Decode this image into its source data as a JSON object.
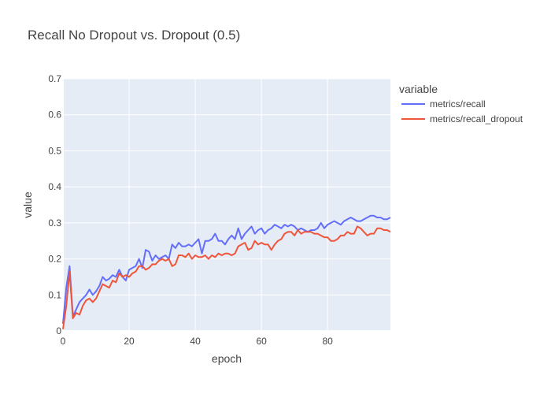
{
  "chart_data": {
    "type": "line",
    "title": "Recall No Dropout vs. Dropout (0.5)",
    "xlabel": "epoch",
    "ylabel": "value",
    "xlim": [
      0,
      99
    ],
    "ylim": [
      0,
      0.7
    ],
    "x_ticks": [
      0,
      20,
      40,
      60,
      80
    ],
    "y_ticks": [
      0,
      0.1,
      0.2,
      0.3,
      0.4,
      0.5,
      0.6,
      0.7
    ],
    "x_tick_labels": [
      "0",
      "20",
      "40",
      "60",
      "80"
    ],
    "y_tick_labels": [
      "0",
      "0.1",
      "0.2",
      "0.3",
      "0.4",
      "0.5",
      "0.6",
      "0.7"
    ],
    "grid": true,
    "legend": {
      "title": "variable",
      "position": "right"
    },
    "x": [
      0,
      1,
      2,
      3,
      4,
      5,
      6,
      7,
      8,
      9,
      10,
      11,
      12,
      13,
      14,
      15,
      16,
      17,
      18,
      19,
      20,
      21,
      22,
      23,
      24,
      25,
      26,
      27,
      28,
      29,
      30,
      31,
      32,
      33,
      34,
      35,
      36,
      37,
      38,
      39,
      40,
      41,
      42,
      43,
      44,
      45,
      46,
      47,
      48,
      49,
      50,
      51,
      52,
      53,
      54,
      55,
      56,
      57,
      58,
      59,
      60,
      61,
      62,
      63,
      64,
      65,
      66,
      67,
      68,
      69,
      70,
      71,
      72,
      73,
      74,
      75,
      76,
      77,
      78,
      79,
      80,
      81,
      82,
      83,
      84,
      85,
      86,
      87,
      88,
      89,
      90,
      91,
      92,
      93,
      94,
      95,
      96,
      97,
      98,
      99
    ],
    "series": [
      {
        "name": "metrics/recall",
        "color": "#636efa",
        "values": [
          0.02,
          0.12,
          0.18,
          0.04,
          0.06,
          0.08,
          0.09,
          0.1,
          0.115,
          0.1,
          0.11,
          0.125,
          0.15,
          0.14,
          0.145,
          0.155,
          0.15,
          0.17,
          0.15,
          0.14,
          0.17,
          0.175,
          0.18,
          0.2,
          0.175,
          0.225,
          0.22,
          0.195,
          0.21,
          0.2,
          0.205,
          0.21,
          0.2,
          0.24,
          0.23,
          0.245,
          0.235,
          0.235,
          0.24,
          0.235,
          0.245,
          0.255,
          0.215,
          0.25,
          0.25,
          0.255,
          0.27,
          0.25,
          0.25,
          0.24,
          0.255,
          0.265,
          0.255,
          0.285,
          0.255,
          0.27,
          0.28,
          0.29,
          0.27,
          0.28,
          0.285,
          0.27,
          0.28,
          0.285,
          0.295,
          0.29,
          0.285,
          0.295,
          0.29,
          0.295,
          0.29,
          0.28,
          0.285,
          0.28,
          0.275,
          0.28,
          0.28,
          0.285,
          0.3,
          0.285,
          0.295,
          0.3,
          0.305,
          0.3,
          0.295,
          0.305,
          0.31,
          0.315,
          0.31,
          0.305,
          0.305,
          0.31,
          0.315,
          0.32,
          0.32,
          0.315,
          0.315,
          0.31,
          0.31,
          0.315
        ]
      },
      {
        "name": "metrics/recall_dropout",
        "color": "#ef553b",
        "values": [
          0.005,
          0.07,
          0.165,
          0.035,
          0.05,
          0.045,
          0.07,
          0.085,
          0.09,
          0.08,
          0.09,
          0.11,
          0.13,
          0.125,
          0.12,
          0.14,
          0.135,
          0.16,
          0.15,
          0.155,
          0.15,
          0.16,
          0.165,
          0.18,
          0.18,
          0.17,
          0.175,
          0.185,
          0.185,
          0.195,
          0.2,
          0.195,
          0.2,
          0.18,
          0.185,
          0.21,
          0.21,
          0.205,
          0.215,
          0.2,
          0.21,
          0.205,
          0.205,
          0.21,
          0.2,
          0.21,
          0.205,
          0.215,
          0.21,
          0.215,
          0.215,
          0.21,
          0.215,
          0.235,
          0.24,
          0.245,
          0.225,
          0.23,
          0.25,
          0.24,
          0.245,
          0.24,
          0.24,
          0.225,
          0.24,
          0.25,
          0.255,
          0.27,
          0.275,
          0.275,
          0.265,
          0.28,
          0.27,
          0.275,
          0.275,
          0.275,
          0.27,
          0.27,
          0.265,
          0.26,
          0.26,
          0.25,
          0.25,
          0.255,
          0.265,
          0.265,
          0.275,
          0.27,
          0.27,
          0.29,
          0.285,
          0.275,
          0.265,
          0.27,
          0.27,
          0.285,
          0.285,
          0.28,
          0.28,
          0.275
        ]
      }
    ]
  }
}
